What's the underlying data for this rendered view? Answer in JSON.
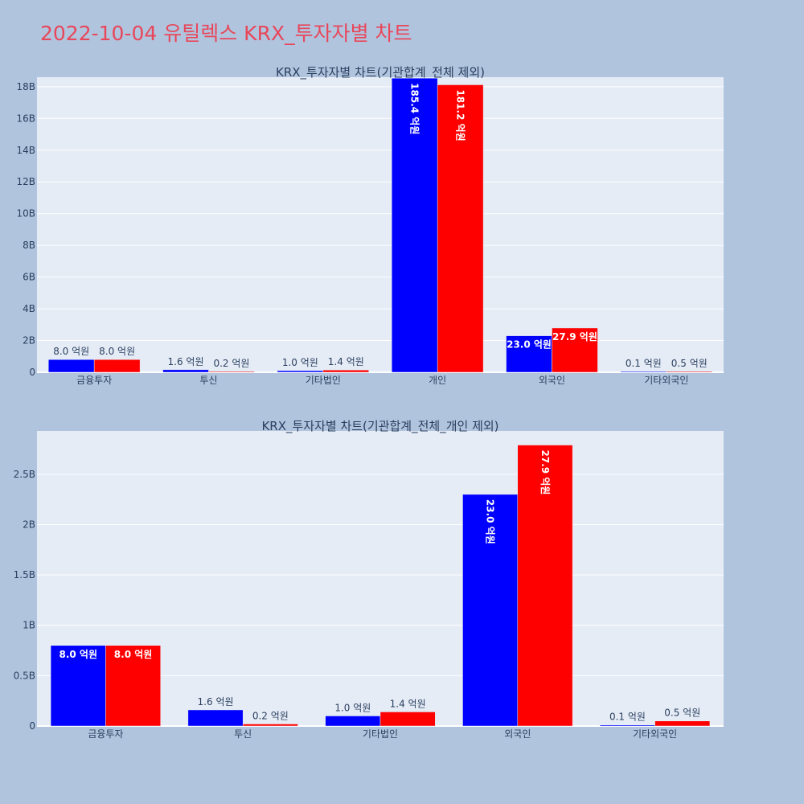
{
  "page_title": "2022-10-04 유틸렉스 KRX_투자자별 차트",
  "colors": {
    "buy": "#0000ff",
    "sell": "#ff0000",
    "plot_bg": "#e5ecf6",
    "page_bg": "#b0c4de",
    "title": "#e8475a"
  },
  "chart_data": [
    {
      "type": "bar",
      "title": "KRX_투자자별 차트(기관합계_전체 제외)",
      "categories": [
        "금융투자",
        "투신",
        "기타법인",
        "개인",
        "외국인",
        "기타외국인"
      ],
      "series": [
        {
          "values": [
            0.8,
            0.16,
            0.1,
            18.54,
            2.3,
            0.01
          ],
          "labels": [
            "8.0 억원",
            "1.6 억원",
            "1.0 억원",
            "185.4 억원",
            "23.0 억원",
            "0.1 억원"
          ]
        },
        {
          "values": [
            0.8,
            0.02,
            0.14,
            18.12,
            2.79,
            0.05
          ],
          "labels": [
            "8.0 억원",
            "0.2 억원",
            "1.4 억원",
            "181.2 억원",
            "27.9 억원",
            "0.5 억원"
          ]
        }
      ],
      "yticks": [
        0,
        2,
        4,
        6,
        8,
        10,
        12,
        14,
        16,
        18
      ],
      "ytick_labels": [
        "0",
        "2B",
        "4B",
        "6B",
        "8B",
        "10B",
        "12B",
        "14B",
        "16B",
        "18B"
      ],
      "ylim": [
        0,
        18.6
      ],
      "yunit": "B",
      "grid": true,
      "legend": "none"
    },
    {
      "type": "bar",
      "title": "KRX_투자자별 차트(기관합계_전체_개인 제외)",
      "categories": [
        "금융투자",
        "투신",
        "기타법인",
        "외국인",
        "기타외국인"
      ],
      "series": [
        {
          "values": [
            0.8,
            0.16,
            0.1,
            2.3,
            0.01
          ],
          "labels": [
            "8.0 억원",
            "1.6 억원",
            "1.0 억원",
            "23.0 억원",
            "0.1 억원"
          ]
        },
        {
          "values": [
            0.8,
            0.02,
            0.14,
            2.79,
            0.05
          ],
          "labels": [
            "8.0 억원",
            "0.2 억원",
            "1.4 억원",
            "27.9 억원",
            "0.5 억원"
          ]
        }
      ],
      "yticks": [
        0,
        0.5,
        1,
        1.5,
        2,
        2.5
      ],
      "ytick_labels": [
        "0",
        "0.5B",
        "1B",
        "1.5B",
        "2B",
        "2.5B"
      ],
      "ylim": [
        0,
        2.93
      ],
      "yunit": "B",
      "grid": true,
      "legend": "none"
    }
  ]
}
